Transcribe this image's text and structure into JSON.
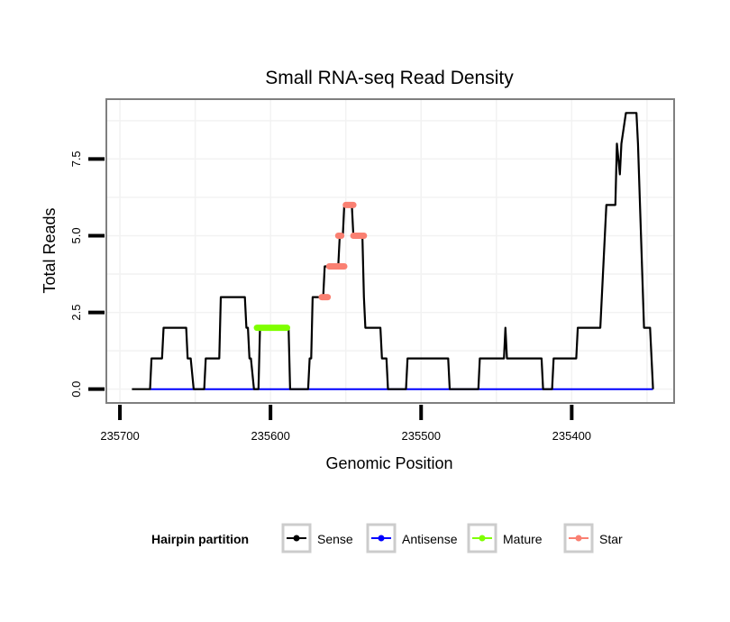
{
  "chart_data": {
    "type": "line",
    "title": "Small RNA-seq Read Density",
    "xlabel": "Genomic Position",
    "ylabel": "Total Reads",
    "x_reversed": true,
    "xlim": [
      235709,
      235332
    ],
    "ylim": [
      -0.45,
      9.45
    ],
    "x_ticks": [
      235700,
      235600,
      235500,
      235400
    ],
    "x_tick_labels": [
      "235700",
      "235600",
      "235500",
      "235400"
    ],
    "y_ticks": [
      0,
      2.5,
      5,
      7.5
    ],
    "y_tick_labels": [
      "0.0",
      "2.5",
      "5.0",
      "7.5"
    ],
    "grid": true,
    "legend": {
      "title": "Hairpin partition",
      "position": "bottom",
      "entries": [
        {
          "label": "Sense",
          "color": "#000000"
        },
        {
          "label": "Antisense",
          "color": "#0000ff"
        },
        {
          "label": "Mature",
          "color": "#7fff00"
        },
        {
          "label": "Star",
          "color": "#fa8072"
        }
      ]
    },
    "series": [
      {
        "name": "Sense",
        "color": "#000000",
        "points": [
          [
            235692,
            0
          ],
          [
            235680,
            0
          ],
          [
            235679,
            1
          ],
          [
            235672,
            1
          ],
          [
            235671,
            2
          ],
          [
            235656,
            2
          ],
          [
            235655,
            1
          ],
          [
            235653,
            1
          ],
          [
            235651,
            0
          ],
          [
            235644,
            0
          ],
          [
            235643,
            1
          ],
          [
            235634,
            1
          ],
          [
            235633,
            3
          ],
          [
            235617,
            3
          ],
          [
            235616,
            2
          ],
          [
            235615,
            2
          ],
          [
            235614,
            1
          ],
          [
            235613,
            1
          ],
          [
            235611,
            0
          ],
          [
            235608,
            0
          ],
          [
            235607,
            2
          ],
          [
            235588,
            2
          ],
          [
            235587,
            0
          ],
          [
            235575,
            0
          ],
          [
            235574,
            1
          ],
          [
            235573,
            1
          ],
          [
            235572,
            3
          ],
          [
            235565,
            3
          ],
          [
            235564,
            4
          ],
          [
            235555,
            4
          ],
          [
            235554,
            5
          ],
          [
            235552,
            5
          ],
          [
            235551,
            6
          ],
          [
            235546,
            6
          ],
          [
            235545,
            5
          ],
          [
            235539,
            5
          ],
          [
            235538,
            3
          ],
          [
            235537,
            2
          ],
          [
            235527,
            2
          ],
          [
            235526,
            1
          ],
          [
            235523,
            1
          ],
          [
            235522,
            0
          ],
          [
            235510,
            0
          ],
          [
            235509,
            1
          ],
          [
            235482,
            1
          ],
          [
            235481,
            0
          ],
          [
            235462,
            0
          ],
          [
            235461,
            1
          ],
          [
            235445,
            1
          ],
          [
            235444,
            2
          ],
          [
            235443,
            1
          ],
          [
            235420,
            1
          ],
          [
            235419,
            0
          ],
          [
            235413,
            0
          ],
          [
            235412,
            1
          ],
          [
            235397,
            1
          ],
          [
            235396,
            2
          ],
          [
            235381,
            2
          ],
          [
            235377,
            6
          ],
          [
            235371,
            6
          ],
          [
            235370,
            8
          ],
          [
            235368,
            7
          ],
          [
            235367,
            8
          ],
          [
            235364,
            9
          ],
          [
            235357,
            9
          ],
          [
            235356,
            8
          ],
          [
            235352,
            2
          ],
          [
            235348,
            2
          ],
          [
            235346,
            0
          ]
        ]
      },
      {
        "name": "Antisense",
        "color": "#0000ff",
        "points": [
          [
            235680,
            0
          ],
          [
            235346,
            0
          ]
        ]
      },
      {
        "name": "Mature",
        "color": "#7fff00",
        "points": [
          [
            235609,
            2
          ],
          [
            235589,
            2
          ]
        ]
      },
      {
        "name": "Star",
        "color": "#fa8072",
        "segments": [
          [
            [
              235566,
              3
            ],
            [
              235562,
              3
            ]
          ],
          [
            [
              235561,
              4
            ],
            [
              235551,
              4
            ]
          ],
          [
            [
              235555,
              5
            ],
            [
              235553,
              5
            ]
          ],
          [
            [
              235550,
              6
            ],
            [
              235545,
              6
            ]
          ],
          [
            [
              235545,
              5
            ],
            [
              235538,
              5
            ]
          ]
        ]
      }
    ]
  }
}
